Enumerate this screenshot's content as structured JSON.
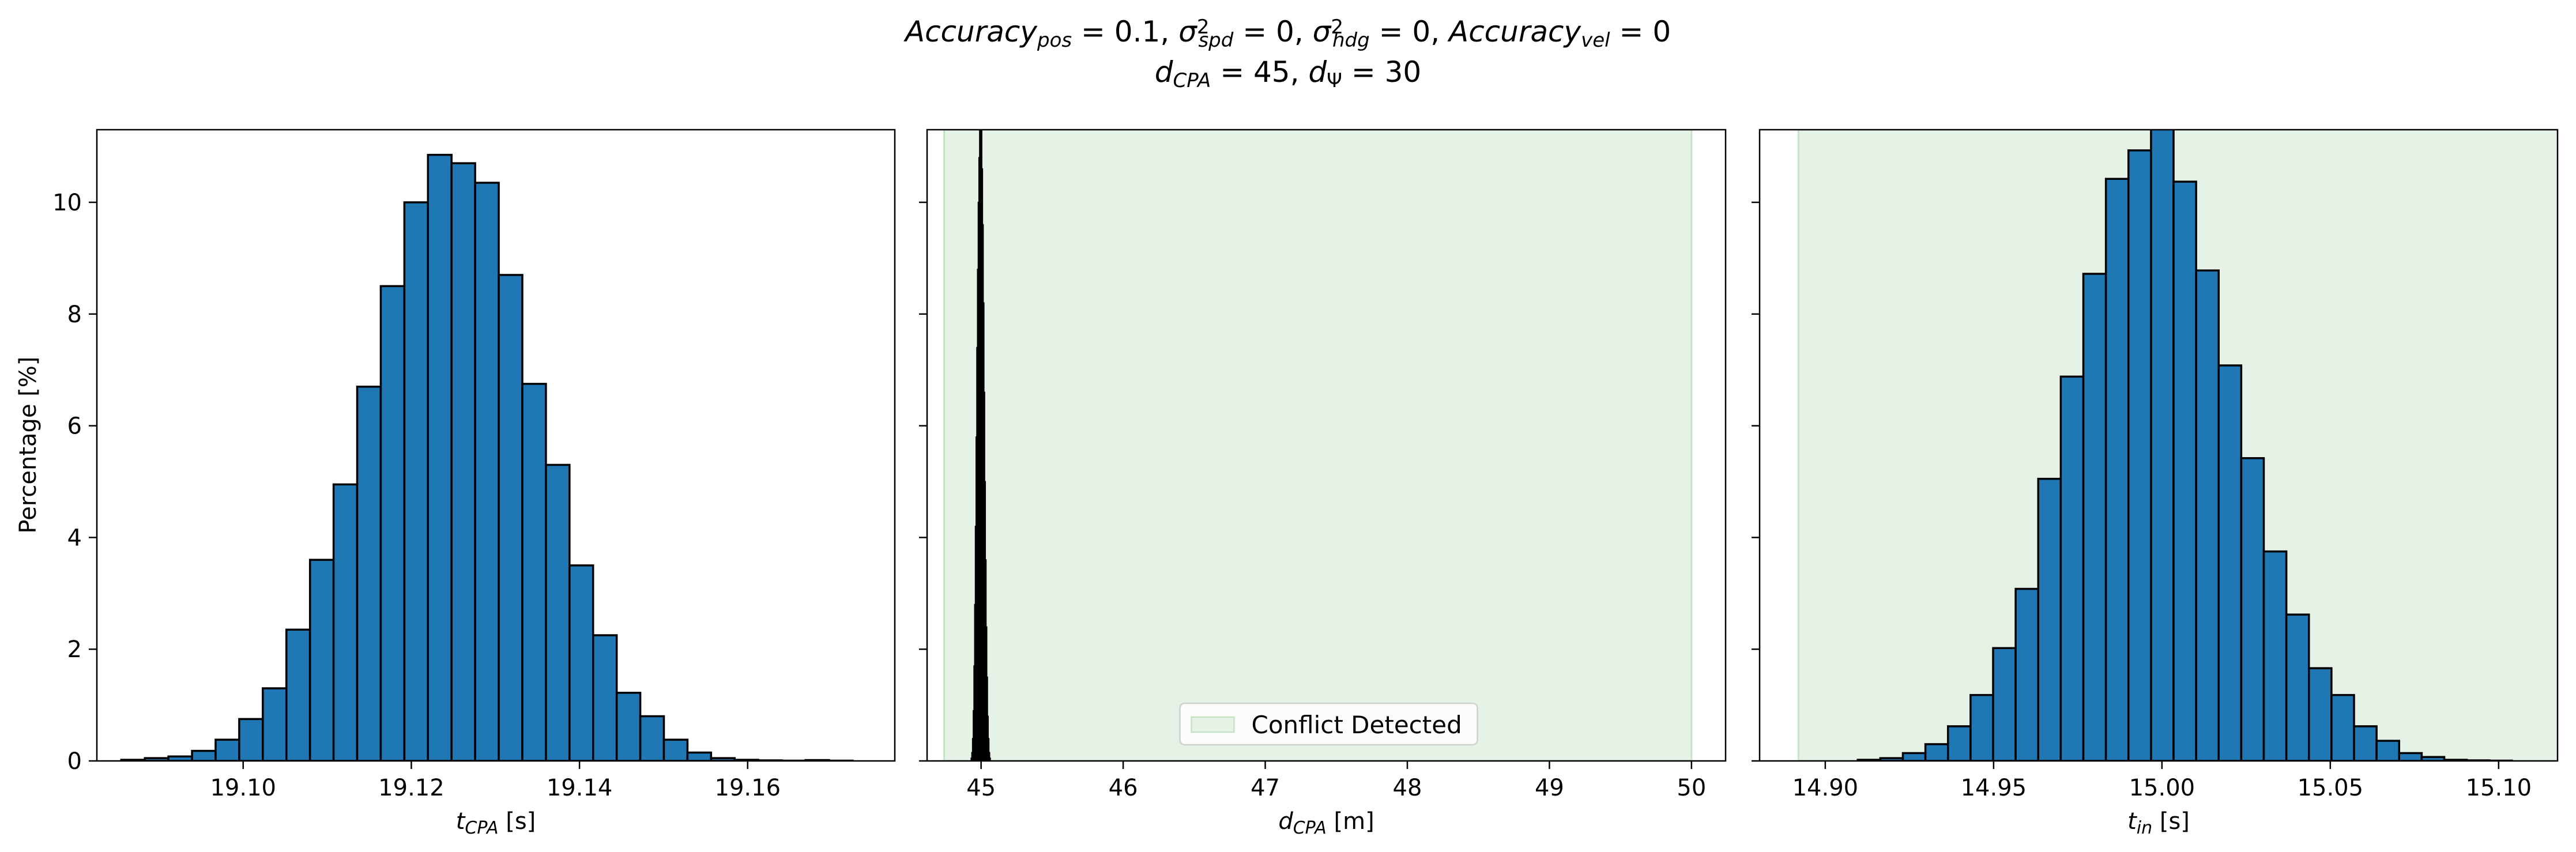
{
  "chart_data": [
    {
      "type": "bar",
      "panel": "left",
      "xlabel": "t_CPA [s]",
      "xlabel_main": "t",
      "xlabel_sub": "CPA",
      "xlabel_unit": " [s]",
      "ylabel": "Percentage [%]",
      "xlim": [
        19.0826,
        19.1775
      ],
      "ylim": [
        0,
        11.3
      ],
      "xticks": [
        19.1,
        19.12,
        19.14,
        19.16
      ],
      "xtick_labels": [
        "19.10",
        "19.12",
        "19.14",
        "19.16"
      ],
      "yticks": [
        0,
        2,
        4,
        6,
        8,
        10
      ],
      "ytick_labels": [
        "0",
        "2",
        "4",
        "6",
        "8",
        "10"
      ],
      "bar_color": "#1f77b4",
      "bins_start": 19.0855,
      "bin_width": 0.002806,
      "values": [
        0.02,
        0.05,
        0.08,
        0.18,
        0.38,
        0.75,
        1.3,
        2.35,
        3.6,
        4.95,
        6.7,
        8.5,
        10.0,
        10.85,
        10.7,
        10.35,
        8.7,
        6.75,
        5.3,
        3.5,
        2.25,
        1.22,
        0.8,
        0.38,
        0.15,
        0.05,
        0.02,
        0.01,
        0.005,
        0.015,
        0.005
      ]
    },
    {
      "type": "bar",
      "panel": "middle",
      "xlabel": "d_CPA [m]",
      "xlabel_main": "d",
      "xlabel_sub": "CPA",
      "xlabel_unit": " [m]",
      "xlim": [
        44.62,
        50.24
      ],
      "ylim": [
        0,
        11.3
      ],
      "xticks": [
        45,
        46,
        47,
        48,
        49,
        50
      ],
      "xtick_labels": [
        "45",
        "46",
        "47",
        "48",
        "49",
        "50"
      ],
      "shaded_region": [
        44.74,
        50.0
      ],
      "shade_color": "#e5f2e5",
      "bar_color": "#000000",
      "bins_start": 44.93,
      "bin_width": 0.005,
      "values": [
        0.05,
        0.15,
        0.4,
        0.9,
        1.7,
        2.8,
        4.2,
        5.8,
        7.4,
        8.8,
        10.0,
        10.8,
        11.3,
        11.3,
        11.3,
        10.6,
        9.6,
        8.2,
        6.6,
        5.0,
        3.6,
        2.4,
        1.5,
        0.8,
        0.4,
        0.15,
        0.05
      ],
      "legend": {
        "label": "Conflict Detected",
        "placement": "lower center"
      }
    },
    {
      "type": "bar",
      "panel": "right",
      "xlabel": "t_in [s]",
      "xlabel_main": "t",
      "xlabel_sub": "in",
      "xlabel_unit": " [s]",
      "xlim": [
        14.8805,
        15.1175
      ],
      "ylim": [
        0,
        11.3
      ],
      "xticks": [
        14.9,
        14.95,
        15.0,
        15.05,
        15.1
      ],
      "xtick_labels": [
        "14.90",
        "14.95",
        "15.00",
        "15.05",
        "15.10"
      ],
      "shaded_region": [
        14.892,
        15.12
      ],
      "shade_color": "#e5f2e5",
      "bar_color": "#1f77b4",
      "bins_start": 14.90965,
      "bin_width": 0.0067,
      "values": [
        0.02,
        0.05,
        0.14,
        0.3,
        0.62,
        1.18,
        2.02,
        3.08,
        5.05,
        6.88,
        8.72,
        10.42,
        10.93,
        11.4,
        10.37,
        8.78,
        7.08,
        5.42,
        3.75,
        2.62,
        1.66,
        1.18,
        0.62,
        0.36,
        0.14,
        0.07,
        0.02,
        0.01,
        0.005
      ]
    }
  ],
  "suptitle": {
    "line1": [
      {
        "main": "Accuracy",
        "sub": "pos",
        "rest": " = 0.1, "
      },
      {
        "main": "σ",
        "sup": "2",
        "sub": "spd",
        "rest": " = 0, "
      },
      {
        "main": "σ",
        "sup": "2",
        "sub": "hdg",
        "rest": " = 0, "
      },
      {
        "main": "Accuracy",
        "sub": "vel",
        "rest": " = 0"
      }
    ],
    "line2": [
      {
        "main": "d",
        "sub": "CPA",
        "rest": " = 45, "
      },
      {
        "main": "d",
        "sub": "Ψ",
        "rest": " = 30"
      }
    ]
  }
}
